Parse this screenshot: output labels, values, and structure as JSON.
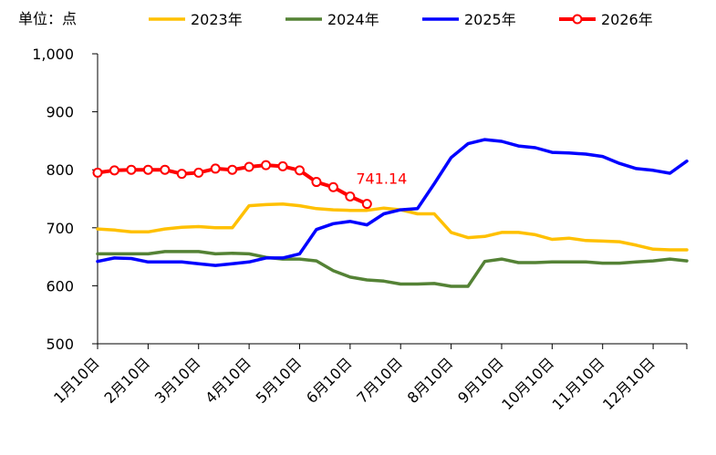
{
  "chart_data": {
    "type": "line",
    "unit_label": "单位：点",
    "title": "",
    "xlabel": "",
    "ylabel": "",
    "ylim": [
      500,
      1000
    ],
    "y_ticks": [
      "500",
      "600",
      "700",
      "800",
      "900",
      "1,000"
    ],
    "y_tick_values": [
      500,
      600,
      700,
      800,
      900,
      1000
    ],
    "x_ticks": [
      "1月10日",
      "2月10日",
      "3月10日",
      "4月10日",
      "5月10日",
      "6月10日",
      "7月10日",
      "8月10日",
      "9月10日",
      "10月10日",
      "11月10日",
      "12月10日"
    ],
    "grid": false,
    "legend_position": "top",
    "series": [
      {
        "name": "2023年",
        "color": "#FFC000",
        "markers": false,
        "x": [
          0,
          1,
          2,
          3,
          4,
          5,
          6,
          7,
          8,
          9,
          10,
          11,
          12,
          13,
          14,
          15,
          16,
          17,
          18,
          19,
          20,
          21,
          22,
          23,
          24,
          25,
          26,
          27,
          28,
          29,
          30,
          31,
          32,
          33,
          34,
          35
        ],
        "values": [
          698,
          696,
          693,
          693,
          698,
          701,
          702,
          700,
          700,
          738,
          740,
          741,
          738,
          733,
          731,
          730,
          730,
          734,
          731,
          724,
          724,
          692,
          683,
          685,
          692,
          692,
          688,
          680,
          682,
          678,
          677,
          676,
          670,
          663,
          662,
          662
        ]
      },
      {
        "name": "2024年",
        "color": "#548235",
        "markers": false,
        "x": [
          0,
          1,
          2,
          3,
          4,
          5,
          6,
          7,
          8,
          9,
          10,
          11,
          12,
          13,
          14,
          15,
          16,
          17,
          18,
          19,
          20,
          21,
          22,
          23,
          24,
          25,
          26,
          27,
          28,
          29,
          30,
          31,
          32,
          33,
          34,
          35
        ],
        "values": [
          655,
          655,
          655,
          655,
          659,
          659,
          659,
          655,
          656,
          655,
          649,
          646,
          646,
          643,
          626,
          615,
          610,
          608,
          603,
          603,
          604,
          599,
          599,
          642,
          646,
          640,
          640,
          641,
          641,
          641,
          639,
          639,
          641,
          643,
          646,
          643
        ]
      },
      {
        "name": "2025年",
        "color": "#0000FF",
        "markers": false,
        "x": [
          0,
          1,
          2,
          3,
          4,
          5,
          6,
          7,
          8,
          9,
          10,
          11,
          12,
          13,
          14,
          15,
          16,
          17,
          18,
          19,
          20,
          21,
          22,
          23,
          24,
          25,
          26,
          27,
          28,
          29,
          30,
          31,
          32,
          33,
          34,
          35
        ],
        "values": [
          642,
          648,
          647,
          641,
          641,
          641,
          638,
          635,
          638,
          641,
          648,
          648,
          655,
          697,
          707,
          711,
          705,
          724,
          731,
          733,
          776,
          821,
          845,
          852,
          849,
          841,
          838,
          830,
          829,
          827,
          823,
          811,
          802,
          799,
          794,
          815
        ]
      },
      {
        "name": "2026年",
        "color": "#FF0000",
        "markers": true,
        "x": [
          0,
          1,
          2,
          3,
          4,
          5,
          6,
          7,
          8,
          9,
          10,
          11,
          12,
          13,
          14,
          15,
          16
        ],
        "values": [
          795,
          799,
          800,
          800,
          800,
          793,
          795,
          802,
          800,
          805,
          808,
          806,
          799,
          779,
          770,
          754,
          741.14
        ]
      }
    ],
    "annotations": [
      {
        "text": "741.14",
        "series": "2026年",
        "point_index": 16,
        "color": "#FF0000"
      }
    ]
  }
}
